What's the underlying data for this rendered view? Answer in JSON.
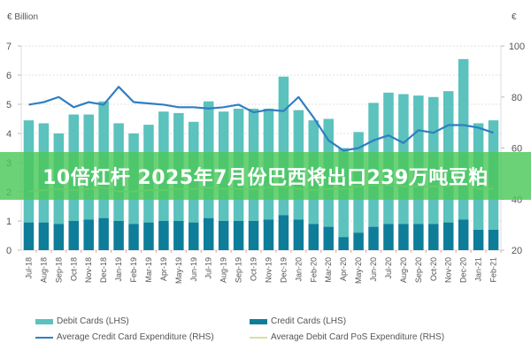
{
  "chart_data": {
    "type": "bar",
    "subtype": "stacked bar with dual-axis lines",
    "title": "",
    "left_axis": {
      "label": "€ Billion",
      "ylim": [
        0,
        7
      ],
      "ticks": [
        0,
        1,
        2,
        3,
        4,
        5,
        6,
        7
      ]
    },
    "right_axis": {
      "label": "€",
      "ylim": [
        20,
        100
      ],
      "ticks": [
        20,
        40,
        60,
        80,
        100
      ]
    },
    "grid": true,
    "legend_position": "bottom",
    "categories": [
      "Jul-18",
      "Aug-18",
      "Sep-18",
      "Oct-18",
      "Nov-18",
      "Dec-18",
      "Jan-19",
      "Feb-19",
      "Mar-19",
      "Apr-19",
      "May-19",
      "Jun-19",
      "Jul-19",
      "Aug-19",
      "Sep-19",
      "Oct-19",
      "Nov-19",
      "Dec-19",
      "Jan-20",
      "Feb-20",
      "Mar-20",
      "Apr-20",
      "May-20",
      "Jun-20",
      "Jul-20",
      "Aug-20",
      "Sep-20",
      "Oct-20",
      "Nov-20",
      "Dec-20",
      "Jan-21",
      "Feb-21"
    ],
    "series": [
      {
        "name": "Credit Cards (LHS)",
        "axis": "left",
        "kind": "bar-stack-bottom",
        "color": "#0e7d9a",
        "values": [
          0.95,
          0.95,
          0.9,
          1.0,
          1.05,
          1.1,
          1.0,
          0.9,
          0.95,
          1.0,
          1.0,
          0.95,
          1.1,
          1.0,
          1.0,
          1.0,
          1.05,
          1.2,
          1.05,
          0.9,
          0.8,
          0.45,
          0.6,
          0.8,
          0.9,
          0.9,
          0.9,
          0.9,
          0.95,
          1.05,
          0.7,
          0.7
        ]
      },
      {
        "name": "Debit Cards (LHS)",
        "axis": "left",
        "kind": "bar-stack-top",
        "color": "#5bc2bd",
        "values": [
          3.5,
          3.4,
          3.1,
          3.65,
          3.6,
          4.0,
          3.35,
          3.1,
          3.35,
          3.75,
          3.7,
          3.45,
          4.0,
          3.75,
          3.85,
          3.85,
          3.8,
          4.75,
          3.75,
          3.55,
          3.7,
          3.05,
          3.45,
          4.25,
          4.5,
          4.45,
          4.4,
          4.35,
          4.5,
          5.5,
          3.65,
          3.75
        ]
      },
      {
        "name": "Average Credit Card Expenditure (RHS)",
        "axis": "right",
        "kind": "line",
        "color": "#2f7fc1",
        "values": [
          77,
          78,
          80,
          76,
          78,
          77,
          84,
          78,
          77.5,
          77,
          76,
          76,
          75.5,
          76,
          77,
          74,
          75,
          74.5,
          80,
          72,
          63,
          59,
          60,
          63,
          65,
          62,
          67,
          66,
          69,
          69,
          68,
          66
        ]
      },
      {
        "name": "Average Debit Card PoS Expenditure (RHS)",
        "axis": "right",
        "kind": "line",
        "color": "#d4e39a",
        "values": [
          43,
          43.5,
          44,
          43.5,
          44,
          44.5,
          43,
          43,
          43.5,
          43.5,
          44,
          44,
          44.5,
          44,
          44,
          44,
          44.5,
          45,
          44,
          43.5,
          44,
          44,
          45,
          45.5,
          45.5,
          45,
          45,
          45,
          45,
          46,
          44,
          44
        ]
      }
    ],
    "xlabel": "",
    "ylabel": "€ Billion"
  },
  "axes": {
    "left_unit": "€ Billion",
    "right_unit": "€",
    "left_ticks": [
      "0",
      "1",
      "2",
      "3",
      "4",
      "5",
      "6",
      "7"
    ],
    "right_ticks": [
      "20",
      "40",
      "60",
      "80",
      "100"
    ]
  },
  "legend": {
    "debit": "Debit Cards (LHS)",
    "credit": "Credit Cards (LHS)",
    "avg_credit": "Average Credit Card Expenditure (RHS)",
    "avg_debit_pos": "Average Debit Card PoS Expenditure (RHS)"
  },
  "banner": {
    "text": "10倍杠杆 2025年7月份巴西将出口239万吨豆粕"
  },
  "colors": {
    "debit": "#5bc2bd",
    "credit": "#0e7d9a",
    "avg_credit": "#2f7fc1",
    "avg_debit_pos": "#d4e39a",
    "banner": "#4cc85a"
  }
}
